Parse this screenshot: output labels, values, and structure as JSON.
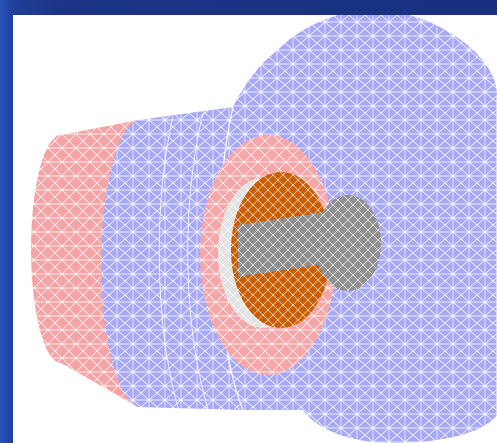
{
  "figure": {
    "parts": [
      {
        "name": "outer-back-cylinder",
        "color": "#f6a3a6"
      },
      {
        "name": "inner-lining-pink",
        "color": "#f7a6a8"
      },
      {
        "name": "horn-shell",
        "color": "#a7a8f6"
      },
      {
        "name": "inner-sleeve",
        "color": "#e3e3e3"
      },
      {
        "name": "orange-dome",
        "color": "#cc5c00"
      },
      {
        "name": "gray-post",
        "color": "#8e8e8e"
      },
      {
        "name": "gray-cap",
        "color": "#909090"
      }
    ],
    "mesh_color": "#ffffff",
    "background_color": "#ffffff",
    "frame_color": "#1f3a94"
  }
}
